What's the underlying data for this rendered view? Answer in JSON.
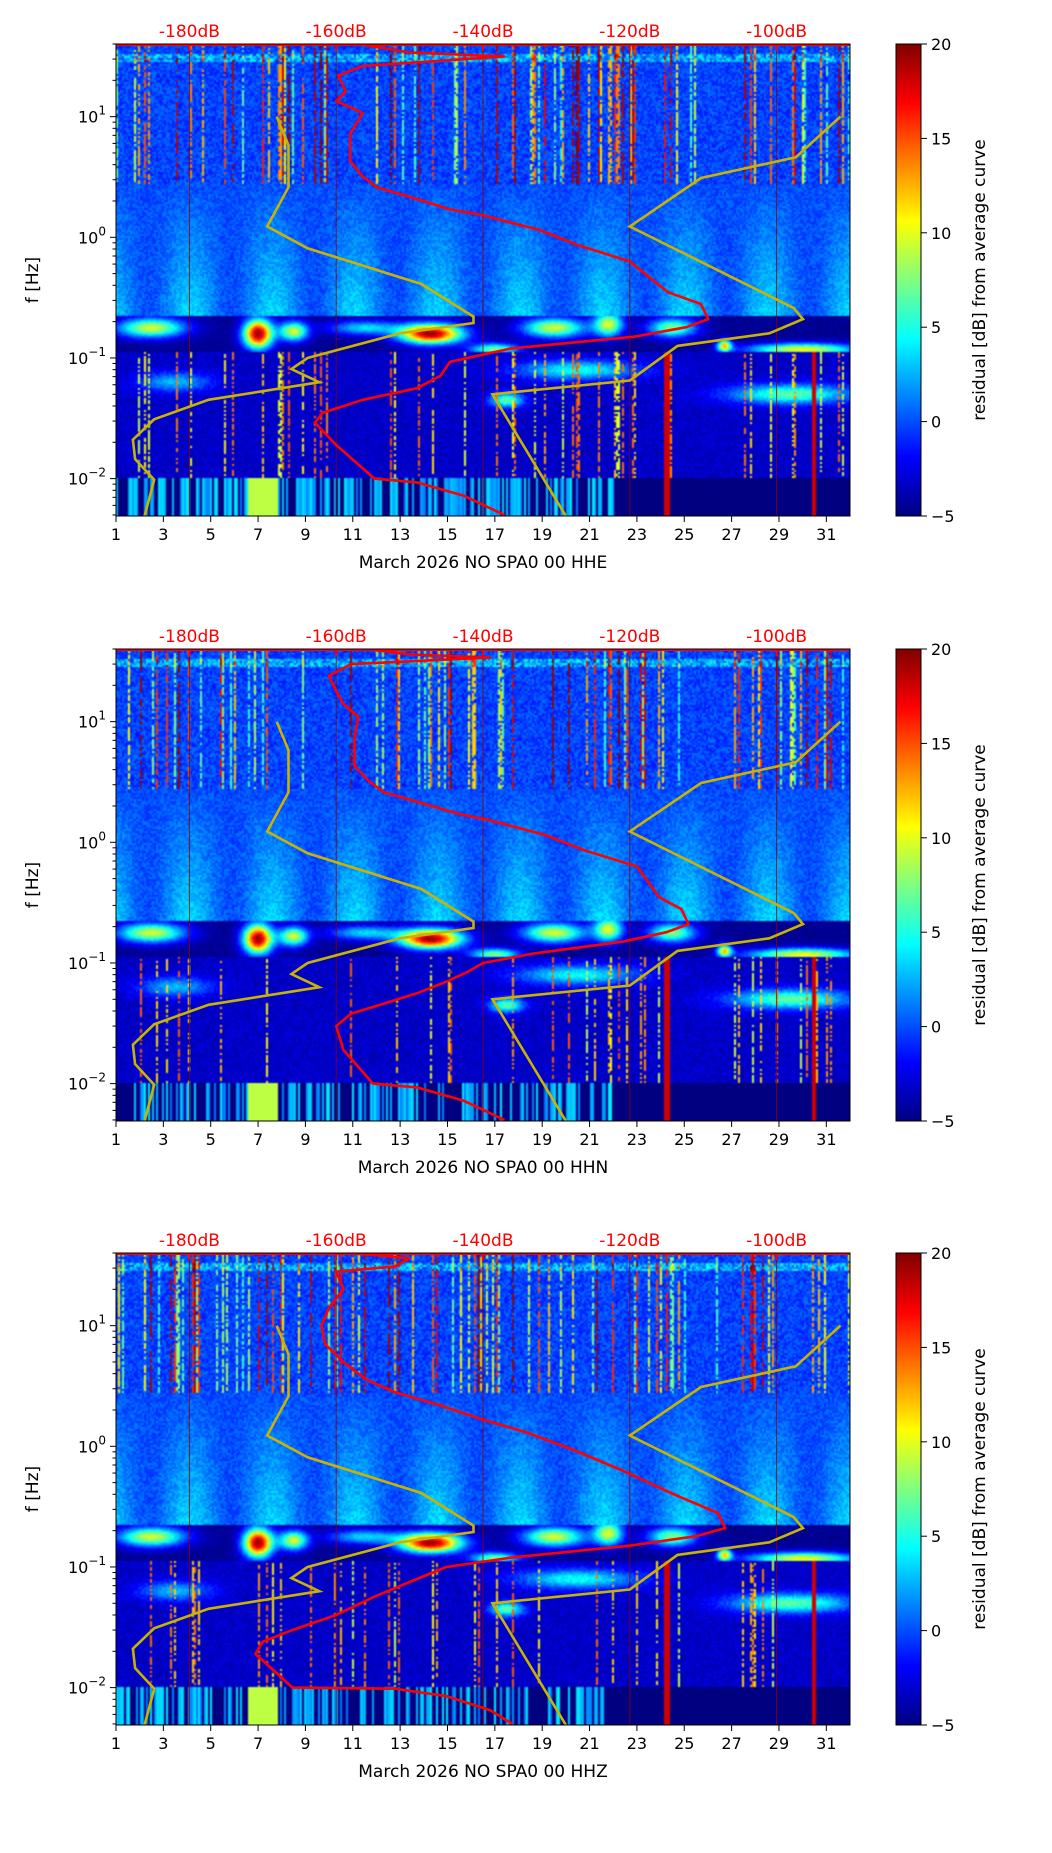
{
  "colors": {
    "psd_curve": "#ff0000",
    "noise_model": "#c8b400",
    "db_label": "#ff0000",
    "grid": "#8b0000"
  },
  "x_axis": {
    "range_days": [
      1,
      32
    ],
    "ticks": [
      1,
      3,
      5,
      7,
      9,
      11,
      13,
      15,
      17,
      19,
      21,
      23,
      25,
      27,
      29,
      31
    ]
  },
  "top_axis": {
    "range_db": [
      -190,
      -90
    ],
    "ticks": [
      {
        "value": -180,
        "label": "-180dB"
      },
      {
        "value": -160,
        "label": "-160dB"
      },
      {
        "value": -140,
        "label": "-140dB"
      },
      {
        "value": -120,
        "label": "-120dB"
      },
      {
        "value": -100,
        "label": "-100dB"
      }
    ]
  },
  "y_axis": {
    "label": "f [Hz]",
    "range_hz": [
      0.0049,
      40
    ],
    "scale": "log",
    "ticks": [
      {
        "value": 10,
        "base": "10",
        "exp": "1"
      },
      {
        "value": 1,
        "base": "10",
        "exp": "0"
      },
      {
        "value": 0.1,
        "base": "10",
        "exp": "−1"
      },
      {
        "value": 0.01,
        "base": "10",
        "exp": "−2"
      }
    ]
  },
  "colorbar": {
    "label": "residual [dB] from average curve",
    "range": [
      -5,
      20
    ],
    "ticks": [
      {
        "value": 20,
        "label": "20"
      },
      {
        "value": 15,
        "label": "15"
      },
      {
        "value": 10,
        "label": "10"
      },
      {
        "value": 5,
        "label": "5"
      },
      {
        "value": 0,
        "label": "0"
      },
      {
        "value": -5,
        "label": "−5"
      }
    ]
  },
  "chart_data": [
    {
      "type": "heatmap",
      "title": "",
      "xlabel": "March 2026 NO SPA0 00 HHE",
      "ylabel": "f [Hz]",
      "psd_curve_db_hz": [
        [
          -157,
          40
        ],
        [
          -150,
          34
        ],
        [
          -137.1,
          31.6
        ],
        [
          -156.4,
          26.3
        ],
        [
          -159.7,
          21.9
        ],
        [
          -158.7,
          16.2
        ],
        [
          -160,
          13.5
        ],
        [
          -156.4,
          10.7
        ],
        [
          -158.1,
          7.2
        ],
        [
          -158.1,
          4.3
        ],
        [
          -156.4,
          3.2
        ],
        [
          -154.5,
          2.6
        ],
        [
          -148.1,
          2.0
        ],
        [
          -144.5,
          1.7
        ],
        [
          -140.6,
          1.55
        ],
        [
          -132.3,
          1.15
        ],
        [
          -126.8,
          0.85
        ],
        [
          -120,
          0.63
        ],
        [
          -114.8,
          0.35
        ],
        [
          -110.3,
          0.28
        ],
        [
          -109.3,
          0.21
        ],
        [
          -112.3,
          0.18
        ],
        [
          -119.4,
          0.15
        ],
        [
          -136.1,
          0.12
        ],
        [
          -144.5,
          0.093
        ],
        [
          -145.8,
          0.071
        ],
        [
          -149,
          0.056
        ],
        [
          -156.4,
          0.045
        ],
        [
          -161.9,
          0.035
        ],
        [
          -162.9,
          0.029
        ],
        [
          -160,
          0.019
        ],
        [
          -154.8,
          0.01
        ],
        [
          -149,
          0.0093
        ],
        [
          -142.6,
          0.0072
        ],
        [
          -137.1,
          0.005
        ]
      ]
    },
    {
      "type": "heatmap",
      "title": "",
      "xlabel": "March 2026 NO SPA0 00 HHN",
      "ylabel": "f [Hz]",
      "psd_curve_db_hz": [
        [
          -156,
          40
        ],
        [
          -150,
          36
        ],
        [
          -139,
          34
        ],
        [
          -158,
          30
        ],
        [
          -161,
          24
        ],
        [
          -160,
          18
        ],
        [
          -159,
          14
        ],
        [
          -157,
          11
        ],
        [
          -157.5,
          7.2
        ],
        [
          -157.5,
          4.3
        ],
        [
          -155.5,
          3.2
        ],
        [
          -153.5,
          2.6
        ],
        [
          -147,
          2.0
        ],
        [
          -143,
          1.7
        ],
        [
          -139.6,
          1.55
        ],
        [
          -131.5,
          1.15
        ],
        [
          -126,
          0.85
        ],
        [
          -119,
          0.63
        ],
        [
          -116,
          0.35
        ],
        [
          -113,
          0.28
        ],
        [
          -112,
          0.21
        ],
        [
          -115,
          0.18
        ],
        [
          -121,
          0.15
        ],
        [
          -133,
          0.12
        ],
        [
          -140,
          0.1
        ],
        [
          -142,
          0.085
        ],
        [
          -145,
          0.07
        ],
        [
          -149,
          0.056
        ],
        [
          -154,
          0.045
        ],
        [
          -158,
          0.038
        ],
        [
          -160,
          0.03
        ],
        [
          -159,
          0.019
        ],
        [
          -155,
          0.01
        ],
        [
          -149,
          0.0093
        ],
        [
          -142.6,
          0.0072
        ],
        [
          -137.1,
          0.005
        ]
      ]
    },
    {
      "type": "heatmap",
      "title": "",
      "xlabel": "March 2026 NO SPA0 00 HHZ",
      "ylabel": "f [Hz]",
      "psd_curve_db_hz": [
        [
          -158,
          40
        ],
        [
          -150,
          36
        ],
        [
          -152,
          31
        ],
        [
          -160,
          28
        ],
        [
          -159,
          20
        ],
        [
          -161,
          14
        ],
        [
          -162,
          10
        ],
        [
          -161.5,
          7
        ],
        [
          -159,
          5
        ],
        [
          -156,
          3.6
        ],
        [
          -152,
          2.8
        ],
        [
          -146,
          2.2
        ],
        [
          -140.5,
          1.7
        ],
        [
          -134,
          1.3
        ],
        [
          -128,
          0.95
        ],
        [
          -121,
          0.63
        ],
        [
          -114,
          0.4
        ],
        [
          -108,
          0.28
        ],
        [
          -107,
          0.21
        ],
        [
          -111,
          0.18
        ],
        [
          -120,
          0.15
        ],
        [
          -136,
          0.12
        ],
        [
          -145,
          0.1
        ],
        [
          -150,
          0.075
        ],
        [
          -155,
          0.056
        ],
        [
          -160,
          0.04
        ],
        [
          -166,
          0.03
        ],
        [
          -170,
          0.024
        ],
        [
          -171,
          0.019
        ],
        [
          -168,
          0.013
        ],
        [
          -166,
          0.01
        ],
        [
          -152,
          0.0098
        ],
        [
          -145,
          0.0085
        ],
        [
          -139,
          0.0065
        ],
        [
          -136,
          0.005
        ]
      ]
    }
  ],
  "nlnm_db_hz": [
    [
      -168.1,
      10
    ],
    [
      -166.5,
      5.8
    ],
    [
      -166.5,
      2.6
    ],
    [
      -169.4,
      1.23
    ],
    [
      -163.9,
      0.81
    ],
    [
      -148.4,
      0.41
    ],
    [
      -141.3,
      0.22
    ],
    [
      -141.3,
      0.195
    ],
    [
      -151.3,
      0.16
    ],
    [
      -163.9,
      0.1
    ],
    [
      -166.1,
      0.081
    ],
    [
      -162.3,
      0.063
    ],
    [
      -177.4,
      0.045
    ],
    [
      -184.8,
      0.031
    ],
    [
      -187.7,
      0.021
    ],
    [
      -187.4,
      0.0145
    ],
    [
      -184.8,
      0.0098
    ],
    [
      -186.1,
      0.0049
    ]
  ],
  "nhnm_db_hz": [
    [
      -91.3,
      10
    ],
    [
      -97.4,
      4.6
    ],
    [
      -110.3,
      3.1
    ],
    [
      -120,
      1.23
    ],
    [
      -97.7,
      0.26
    ],
    [
      -96.4,
      0.21
    ],
    [
      -101,
      0.16
    ],
    [
      -113.5,
      0.126
    ],
    [
      -120,
      0.065
    ],
    [
      -138.7,
      0.05
    ],
    [
      -128.7,
      0.0049
    ]
  ]
}
